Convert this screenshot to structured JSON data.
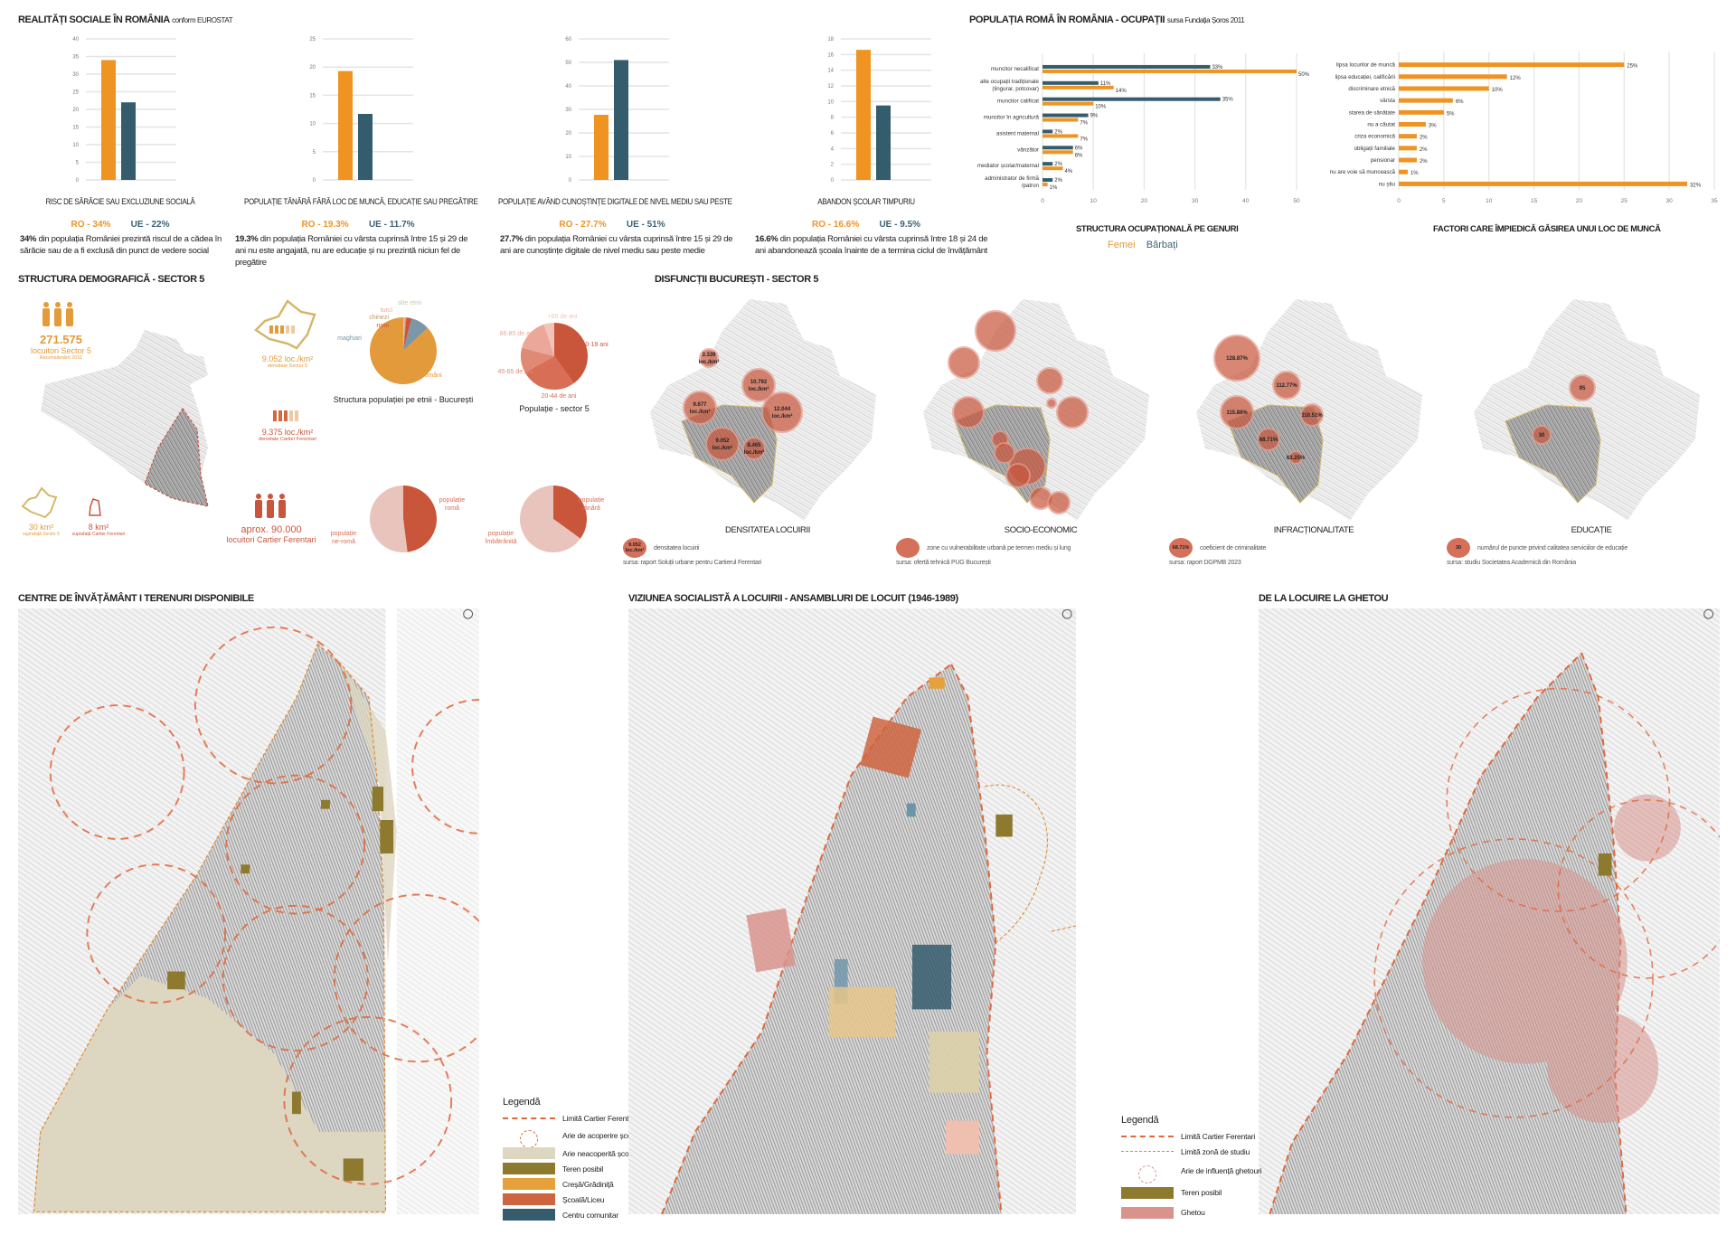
{
  "colors": {
    "ro": "#ef9423",
    "ue": "#345c6d",
    "olive": "#8d7a2f",
    "beige": "#ddd6c1",
    "creche": "#e6a13c",
    "school": "#cf6440",
    "community": "#345c6d",
    "ghetto": "#d9938c",
    "red": "#c9553b"
  },
  "social": {
    "title": "REALITĂȚI SOCIALE ÎN ROMÂNIA",
    "title_small": "conform EUROSTAT",
    "charts": [
      {
        "caption": "RISC DE SĂRĂCIE SAU EXCLUZIUNE SOCIALĂ",
        "ro_label": "RO - 34%",
        "ue_label": "UE - 22%",
        "desc_bold": "34%",
        "desc": " din populația României prezintă riscul de a cădea în sărăcie sau de a fi exclusă din punct de vedere social"
      },
      {
        "caption": "POPULAȚIE  TÂNĂRĂ FĂRĂ LOC DE MUNCĂ, EDUCAȚIE SAU PREGĂTIRE",
        "ro_label": "RO - 19.3%",
        "ue_label": "UE - 11.7%",
        "desc_bold": "19.3%",
        "desc": " din populația României cu vârsta cuprinsă între 15 și 29 de ani nu este angajată, nu are educație și nu prezintă niciun fel de pregătire"
      },
      {
        "caption": "POPULAȚIE AVÂND CUNOȘTINȚE DIGITALE DE NIVEL MEDIU SAU PESTE",
        "ro_label": "RO - 27.7%",
        "ue_label": "UE - 51%",
        "desc_bold": "27.7%",
        "desc": " din populația României cu vârsta cuprinsă între 15 și 29 de ani are cunoștințe digitale de nivel mediu sau peste medie"
      },
      {
        "caption": "ABANDON ȘCOLAR TIMPURIU",
        "ro_label": "RO - 16.6%",
        "ue_label": "UE - 9.5%",
        "desc_bold": "16.6%",
        "desc": " din populația României cu vârsta cuprinsă între 18 și 24 de ani abandonează școala înainte de a termina ciclul de învățământ"
      }
    ]
  },
  "roma": {
    "title": "POPULAȚIA ROMĂ ÎN ROMÂNIA - OCUPAȚII",
    "title_small": "sursa Fundația Șoros 2011",
    "left_caption": "STRUCTURA OCUPAȚIONALĂ PE GENURI",
    "legend_f": "Femei",
    "legend_m": "Bărbați",
    "right_caption": "FACTORI CARE ÎMPIEDICĂ GĂSIREA UNUI LOC DE MUNCĂ"
  },
  "chart_data": [
    {
      "type": "bar",
      "title": "RISC DE SĂRĂCIE SAU EXCLUZIUNE SOCIALĂ",
      "categories": [
        "RO",
        "UE"
      ],
      "values": [
        34,
        22
      ],
      "ylim": [
        0,
        40
      ],
      "ystep": 5,
      "grid": true
    },
    {
      "type": "bar",
      "title": "POPULAȚIE TÂNĂRĂ FĂRĂ LOC DE MUNCĂ, EDUCAȚIE SAU PREGĂTIRE",
      "categories": [
        "RO",
        "UE"
      ],
      "values": [
        19.3,
        11.7
      ],
      "ylim": [
        0,
        25
      ],
      "ystep": 5,
      "grid": true
    },
    {
      "type": "bar",
      "title": "POPULAȚIE AVÂND CUNOȘTINȚE DIGITALE DE NIVEL MEDIU SAU PESTE",
      "categories": [
        "RO",
        "UE"
      ],
      "values": [
        27.7,
        51
      ],
      "ylim": [
        0,
        60
      ],
      "ystep": 10,
      "grid": true
    },
    {
      "type": "bar",
      "title": "ABANDON ȘCOLAR TIMPURIU",
      "categories": [
        "RO",
        "UE"
      ],
      "values": [
        16.6,
        9.5
      ],
      "ylim": [
        0,
        18
      ],
      "ystep": 2,
      "grid": true
    },
    {
      "type": "bar",
      "orientation": "horizontal",
      "title": "STRUCTURA OCUPAȚIONALĂ PE GENURI",
      "xlim": [
        0,
        50
      ],
      "xstep": 10,
      "categories": [
        "muncitor necalificat",
        "alte ocupații tradiționale|(lingurar, potcovar)",
        "muncitor calificat",
        "muncitor în agricultură",
        "asistent maternal",
        "vânzător",
        "mediator școlar/maternal",
        "administrator de firmă|/patron"
      ],
      "series": [
        {
          "name": "Bărbați",
          "values": [
            33,
            11,
            35,
            9,
            2,
            6,
            2,
            2
          ]
        },
        {
          "name": "Femei",
          "values": [
            50,
            14,
            10,
            7,
            7,
            6,
            4,
            1
          ]
        }
      ],
      "legend": "bottom"
    },
    {
      "type": "bar",
      "orientation": "horizontal",
      "title": "FACTORI CARE ÎMPIEDICĂ GĂSIREA UNUI LOC DE MUNCĂ",
      "xlim": [
        0,
        35
      ],
      "xstep": 5,
      "categories": [
        "lipsa locurilor de muncă",
        "lipsa educației, calificării",
        "discriminare etnică",
        "vârsta",
        "starea de sănătate",
        "nu a căutat",
        "criza economică",
        "obligații familiale",
        "pensionar",
        "nu are voie să muncească",
        "nu știu"
      ],
      "values": [
        25,
        12,
        10,
        6,
        5,
        3,
        2,
        2,
        2,
        1,
        32
      ]
    },
    {
      "type": "pie",
      "title": "Structura populației pe etnii - București",
      "labels": [
        "români",
        "maghiari",
        "romi",
        "chinezi",
        "turci",
        "alte etnii"
      ],
      "values": [
        87,
        9,
        2.5,
        0.5,
        0.5,
        0.5
      ]
    },
    {
      "type": "pie",
      "title": "Populație - sector 5",
      "labels": [
        "0-19 ani",
        "20-44 de ani",
        "45-65 de ani",
        "66-85 de ani",
        "+85 de ani"
      ],
      "values": [
        40,
        27,
        12,
        16,
        5
      ]
    },
    {
      "type": "pie",
      "title": "",
      "labels": [
        "populație romă",
        "populație ne-romă"
      ],
      "values": [
        48,
        52
      ]
    },
    {
      "type": "pie",
      "title": "",
      "labels": [
        "populație tânără",
        "populație îmbătrânită"
      ],
      "values": [
        35,
        65
      ]
    }
  ],
  "demo": {
    "title": "STRUCTURA DEMOGRAFICĂ - SECTOR 5",
    "pop_value": "271.575",
    "pop_label": "locuitori Sector 5",
    "pop_note": "Recensământ 2011",
    "dens_s5": "9.052 loc./km²",
    "dens_s5_note": "densitate Sector 5",
    "dens_cf": "9.375 loc./km²",
    "dens_cf_note": "densitate Cartier Ferentari",
    "area_s5": "30 km²",
    "area_s5_note": "suprafață Sector 5",
    "area_cf": "8 km²",
    "area_cf_note": "suprafață Cartier Ferentari",
    "cf_pop": "aprox. 90.000",
    "cf_pop_label": "locuitori Cartier Ferentari"
  },
  "dysf": {
    "title": "DISFUNCȚII BUCUREȘTI - SECTOR 5",
    "maps": [
      {
        "caption": "DENSITATEA LOCUIRII",
        "legend_sym": "9.052 loc./km²",
        "legend": "densitatea locuirii",
        "source": "sursa: raport Soluții urbane pentru Cartierul Ferentari",
        "bubbles": [
          "3.339 loc./km²",
          "10.792 loc./km²",
          "9.677 loc./km²",
          "12.044 loc./km²",
          "9.052 loc./km²",
          "8.465 loc./km²"
        ]
      },
      {
        "caption": "SOCIO-ECONOMIC",
        "legend_sym": "",
        "legend": "zone cu vulnerabilitate urbană pe termen mediu și lung",
        "source": "sursa: ofertă tehnică PUG București",
        "bubbles": []
      },
      {
        "caption": "INFRACȚIONALITATE",
        "legend_sym": "68.71%",
        "legend": "coeficient de criminalitate",
        "source": "sursa: raport DGPMB 2023",
        "bubbles": [
          "128.87%",
          "112.77%",
          "115.88%",
          "110.51%",
          "68.71%",
          "63.25%"
        ]
      },
      {
        "caption": "EDUCAȚIE",
        "legend_sym": "30",
        "legend": "numărul de puncte privind calitatea serviciilor de educație",
        "source": "sursa: studiu Societatea Academică din România",
        "bubbles": [
          "95",
          "30"
        ]
      }
    ]
  },
  "bottom": {
    "map1": {
      "title": "CENTRE DE ÎNVĂȚĂMÂNT  I  TERENURI DISPONIBILE",
      "legend_title": "Legendă",
      "legend": [
        "Limită Cartier Ferentari",
        "Arie de acoperire școli",
        "Arie neacoperită școli",
        "Teren posibil",
        "Creșă/Grădiniță",
        "Școală/Liceu",
        "Centru comunitar"
      ]
    },
    "map2": {
      "title": "VIZIUNEA SOCIALISTĂ A LOCUIRII - ANSAMBLURI DE LOCUIT (1946-1989)"
    },
    "map3": {
      "title": "DE LA LOCUIRE LA GHETOU",
      "legend_title": "Legendă",
      "legend": [
        "Limită Cartier Ferentari",
        "Limită zonă de studiu",
        "Arie de influență ghetouri",
        "Teren posibil",
        "Ghetou"
      ]
    }
  }
}
